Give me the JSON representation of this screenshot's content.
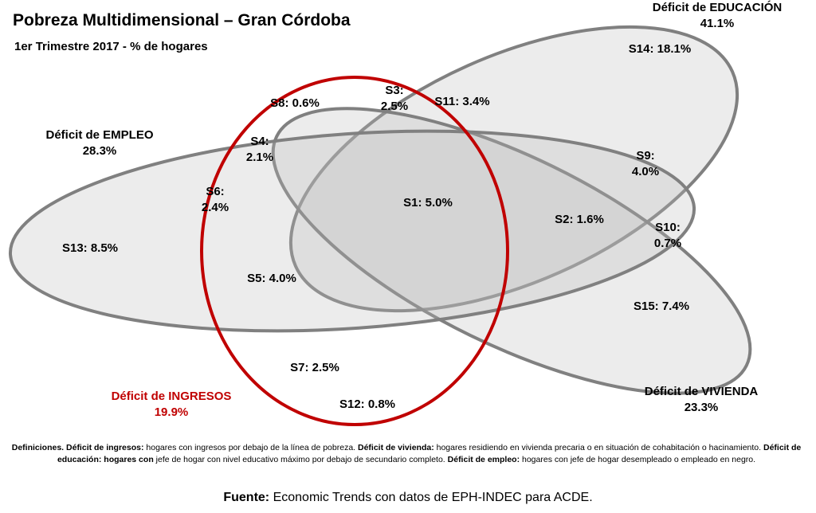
{
  "title": "Pobreza Multidimensional – Gran Córdoba",
  "subtitle": "1er Trimestre 2017 - % de hogares",
  "colors": {
    "ingresos": "#c00000",
    "outline": "#808080",
    "fill": "rgba(185,185,185,0.28)"
  },
  "sets": {
    "educacion": {
      "name": "Déficit de EDUCACIÓN",
      "value": "41.1%"
    },
    "empleo": {
      "name": "Déficit de EMPLEO",
      "value": "28.3%"
    },
    "ingresos": {
      "name": "Déficit de INGRESOS",
      "value": "19.9%"
    },
    "vivienda": {
      "name": "Déficit de VIVIENDA",
      "value": "23.3%"
    }
  },
  "regions": {
    "s1": "S1: 5.0%",
    "s2": "S2: 1.6%",
    "s3a": "S3:",
    "s3b": "2.5%",
    "s4a": "S4:",
    "s4b": "2.1%",
    "s5": "S5: 4.0%",
    "s6a": "S6:",
    "s6b": "2.4%",
    "s7": "S7: 2.5%",
    "s8": "S8: 0.6%",
    "s9a": "S9:",
    "s9b": "4.0%",
    "s10a": "S10:",
    "s10b": "0.7%",
    "s11": "S11: 3.4%",
    "s12": "S12: 0.8%",
    "s13": "S13: 8.5%",
    "s14": "S14: 18.1%",
    "s15": "S15: 7.4%"
  },
  "definitions": {
    "intro": "Definiciones.",
    "ingresos_term": "Déficit de ingresos:",
    "ingresos_text": "hogares con ingresos por debajo de la línea de pobreza.",
    "vivienda_term": "Déficit de vivienda:",
    "vivienda_text": "hogares residiendo en vivienda precaria o en situación de cohabitación o hacinamiento.",
    "educacion_term": "Déficit de educación: hogares con",
    "educacion_text": "jefe de hogar con nivel educativo máximo por debajo de secundario completo.",
    "empleo_term": "Déficit de empleo:",
    "empleo_text": "hogares con jefe de hogar desempleado o empleado en negro."
  },
  "source": {
    "label": "Fuente:",
    "text": "Economic Trends con datos de EPH-INDEC para ACDE."
  }
}
